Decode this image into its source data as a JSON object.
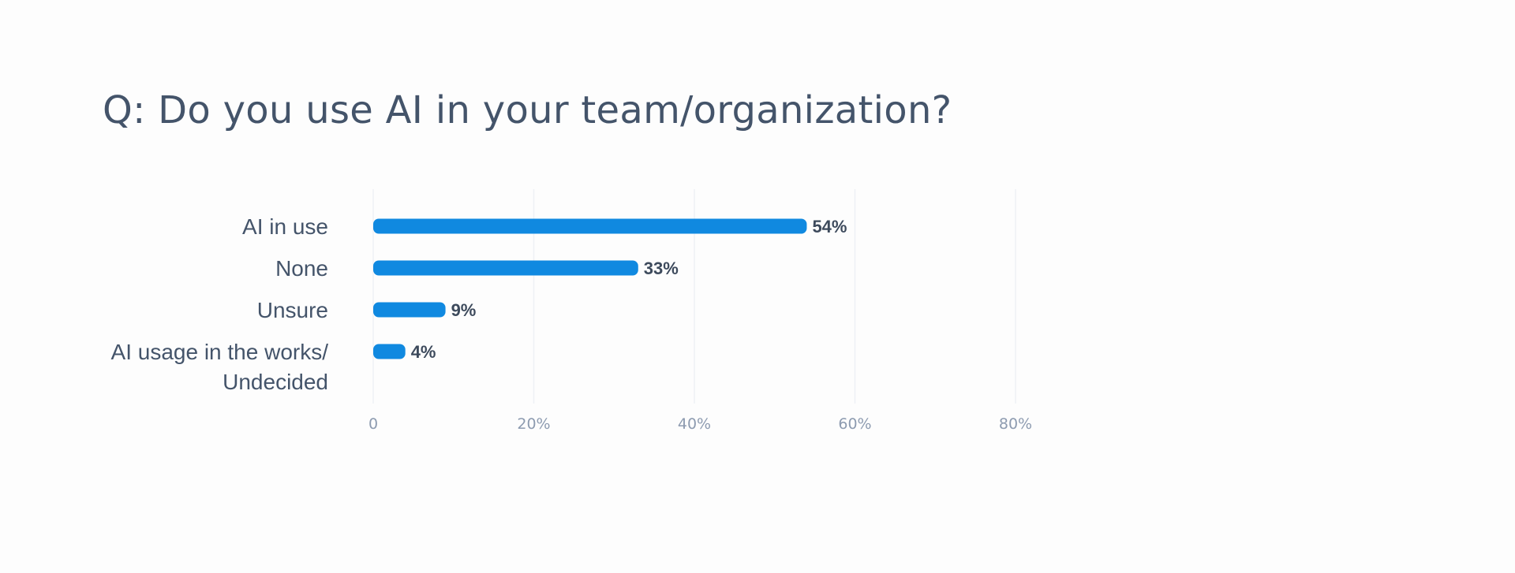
{
  "title": "Q: Do you use AI in your team/organization?",
  "chart_data": {
    "type": "bar",
    "orientation": "horizontal",
    "categories": [
      [
        "AI in use"
      ],
      [
        "None"
      ],
      [
        "Unsure"
      ],
      [
        "AI usage in the works/",
        "Undecided"
      ]
    ],
    "values": [
      54,
      33,
      9,
      4
    ],
    "value_labels": [
      "54%",
      "33%",
      "9%",
      "4%"
    ],
    "xlim": [
      0,
      80
    ],
    "xticks": [
      0,
      20,
      40,
      60,
      80
    ],
    "xtick_labels": [
      "0",
      "20%",
      "40%",
      "60%",
      "80%"
    ],
    "bar_color": "#1089e0",
    "grid": true,
    "title": "Q: Do you use AI in your team/organization?"
  }
}
